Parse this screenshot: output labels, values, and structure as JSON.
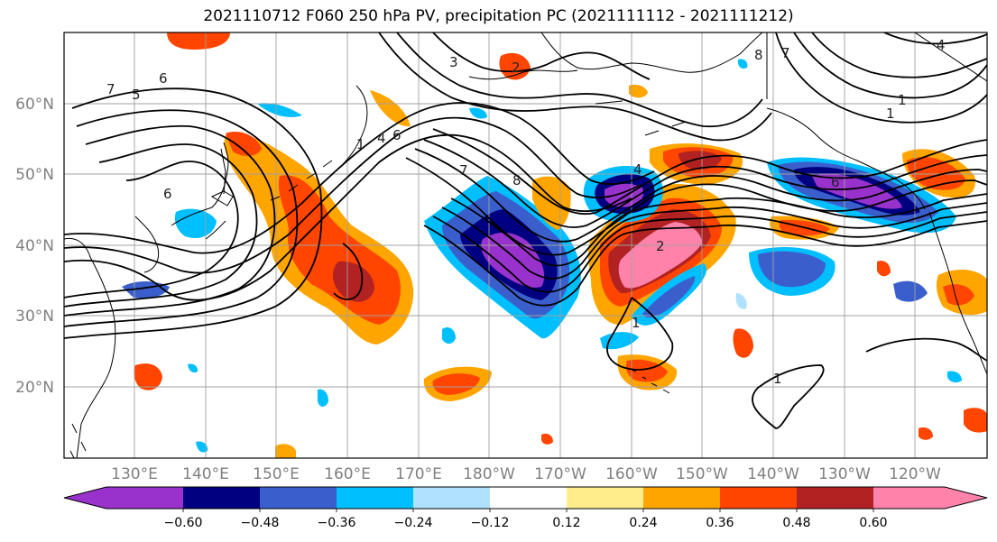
{
  "title": "2021110712 F060 250 hPa PV, precipitation PC (2021111112 - 2021111212)",
  "lat_ticks": [
    "60°N",
    "50°N",
    "40°N",
    "30°N",
    "20°N"
  ],
  "lon_ticks": [
    "130°E",
    "140°E",
    "150°E",
    "160°E",
    "170°E",
    "180°W",
    "170°W",
    "160°W",
    "150°W",
    "140°W",
    "130°W",
    "120°W"
  ],
  "colorbar": {
    "colors": [
      "#9932cc",
      "#000080",
      "#3a5fcd",
      "#00bfff",
      "#b0e2ff",
      "#ffffff",
      "#ffec8b",
      "#ffa500",
      "#ff4500",
      "#b22222",
      "#ff82ab"
    ],
    "labels": [
      "−0.60",
      "−0.48",
      "−0.36",
      "−0.24",
      "−0.12",
      "0.12",
      "0.24",
      "0.36",
      "0.48",
      "0.60"
    ]
  },
  "contour_labels": [
    "2",
    "3",
    "7",
    "6",
    "5",
    "1",
    "4",
    "6",
    "8",
    "7",
    "6",
    "4",
    "2",
    "1",
    "1",
    "6",
    "8",
    "7",
    "4",
    "1",
    "1"
  ]
}
